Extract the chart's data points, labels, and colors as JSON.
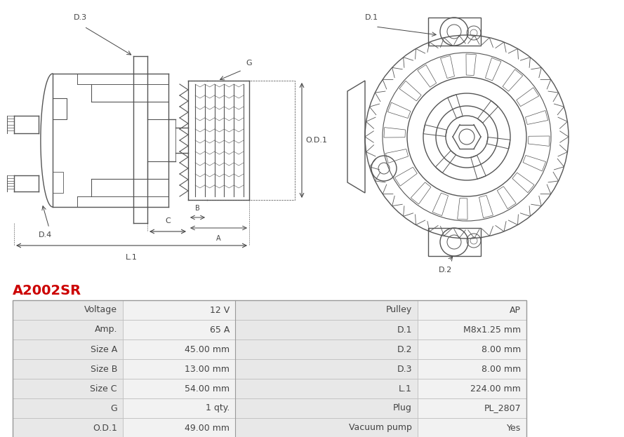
{
  "title": "A2002SR",
  "title_color": "#cc0000",
  "bg_color": "#ffffff",
  "table_rows": [
    [
      "Voltage",
      "12 V",
      "Pulley",
      "AP"
    ],
    [
      "Amp.",
      "65 A",
      "D.1",
      "M8x1.25 mm"
    ],
    [
      "Size A",
      "45.00 mm",
      "D.2",
      "8.00 mm"
    ],
    [
      "Size B",
      "13.00 mm",
      "D.3",
      "8.00 mm"
    ],
    [
      "Size C",
      "54.00 mm",
      "L.1",
      "224.00 mm"
    ],
    [
      "G",
      "1 qty.",
      "Plug",
      "PL_2807"
    ],
    [
      "O.D.1",
      "49.00 mm",
      "Vacuum pump",
      "Yes"
    ]
  ],
  "line_color": "#bbbbbb",
  "label_bg": "#e8e8e8",
  "value_bg": "#f2f2f2",
  "font_color": "#444444",
  "font_size": 8.5,
  "diagram_color": "#555555",
  "dim_color": "#444444"
}
